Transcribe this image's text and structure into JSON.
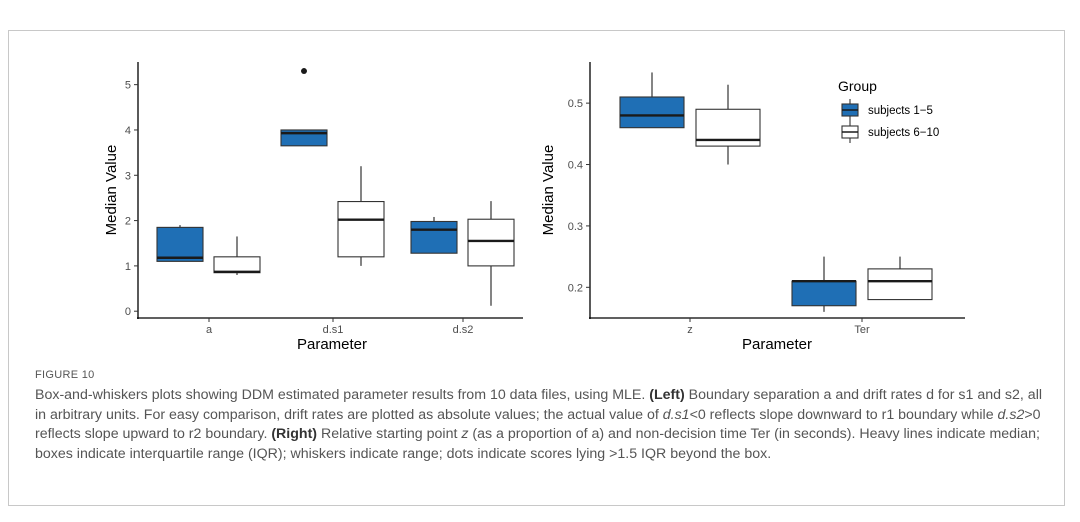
{
  "chart_data": [
    {
      "type": "boxplot",
      "panel": "left",
      "xlabel": "Parameter",
      "ylabel": "Median Value",
      "ylim": [
        -0.15,
        5.5
      ],
      "yticks": [
        0,
        1,
        2,
        3,
        4,
        5
      ],
      "categories": [
        "a",
        "d.s1",
        "d.s2"
      ],
      "series": [
        {
          "name": "subjects 1−5",
          "color": "#1f6fb5",
          "boxes": [
            {
              "min": 1.1,
              "q1": 1.1,
              "median": 1.18,
              "q3": 1.85,
              "max": 1.9,
              "outliers": []
            },
            {
              "min": 3.65,
              "q1": 3.65,
              "median": 3.93,
              "q3": 4.0,
              "max": 4.0,
              "outliers": [
                5.3
              ]
            },
            {
              "min": 1.28,
              "q1": 1.28,
              "median": 1.8,
              "q3": 1.98,
              "max": 2.08,
              "outliers": []
            }
          ]
        },
        {
          "name": "subjects 6−10",
          "color": "#ffffff",
          "boxes": [
            {
              "min": 0.8,
              "q1": 0.85,
              "median": 0.87,
              "q3": 1.2,
              "max": 1.65,
              "outliers": []
            },
            {
              "min": 1.0,
              "q1": 1.2,
              "median": 2.02,
              "q3": 2.42,
              "max": 3.2,
              "outliers": []
            },
            {
              "min": 0.12,
              "q1": 1.0,
              "median": 1.55,
              "q3": 2.03,
              "max": 2.43,
              "outliers": []
            }
          ]
        }
      ]
    },
    {
      "type": "boxplot",
      "panel": "right",
      "xlabel": "Parameter",
      "ylabel": "Median Value",
      "ylim": [
        0.15,
        0.567
      ],
      "yticks": [
        0.2,
        0.3,
        0.4,
        0.5
      ],
      "categories": [
        "z",
        "Ter"
      ],
      "legend": {
        "title": "Group",
        "position": "top-right"
      },
      "series": [
        {
          "name": "subjects 1−5",
          "color": "#1f6fb5",
          "boxes": [
            {
              "min": 0.46,
              "q1": 0.46,
              "median": 0.48,
              "q3": 0.51,
              "max": 0.55,
              "outliers": []
            },
            {
              "min": 0.16,
              "q1": 0.17,
              "median": 0.21,
              "q3": 0.21,
              "max": 0.25,
              "outliers": []
            }
          ]
        },
        {
          "name": "subjects 6−10",
          "color": "#ffffff",
          "boxes": [
            {
              "min": 0.4,
              "q1": 0.43,
              "median": 0.44,
              "q3": 0.49,
              "max": 0.53,
              "outliers": []
            },
            {
              "min": 0.18,
              "q1": 0.18,
              "median": 0.21,
              "q3": 0.23,
              "max": 0.25,
              "outliers": []
            }
          ]
        }
      ]
    }
  ],
  "figure_label": "FIGURE 10",
  "caption": {
    "p1": "Box-and-whiskers plots showing DDM estimated parameter results from 10 data files, using MLE. ",
    "left_label": "(Left)",
    "p2": " Boundary separation a and drift rates d for s1 and s2, all in arbitrary units. For easy comparison, drift rates are plotted as absolute values; the actual value of ",
    "ds1": "d.s1",
    "p3": "<0 reflects slope downward to r1 boundary while ",
    "ds2": "d.s2",
    "p4": ">0 reflects slope upward to r2 boundary. ",
    "right_label": "(Right)",
    "p5": " Relative starting point ",
    "z": "z",
    "p6": " (as a proportion of a) and non-decision time Ter (in seconds). Heavy lines indicate median; boxes indicate interquartile range (IQR); whiskers indicate range; dots indicate scores lying >1.5 IQR beyond the box."
  }
}
